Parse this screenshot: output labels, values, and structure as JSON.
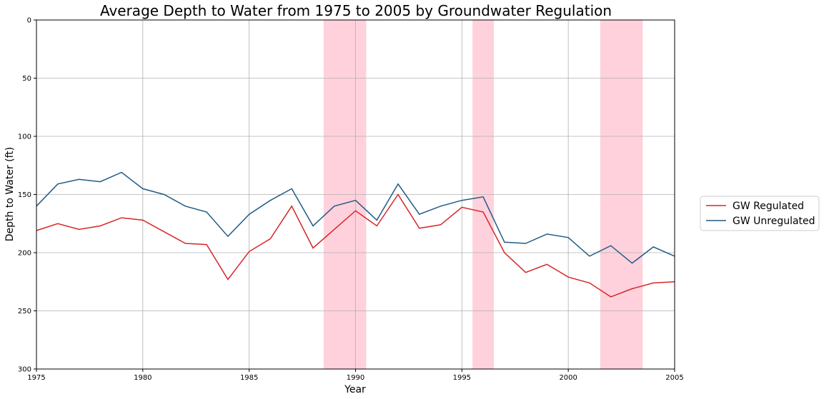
{
  "chart_data": {
    "type": "line",
    "title": "Average Depth to Water from 1975 to 2005 by Groundwater Regulation",
    "xlabel": "Year",
    "ylabel": "Depth to Water (ft)",
    "xlim": [
      1975,
      2005
    ],
    "ylim": [
      0,
      300
    ],
    "y_inverted": true,
    "grid": true,
    "legend_position": "outside-right",
    "x_ticks": [
      1975,
      1980,
      1985,
      1990,
      1995,
      2000,
      2005
    ],
    "y_ticks": [
      0,
      50,
      100,
      150,
      200,
      250,
      300
    ],
    "x": [
      1975,
      1976,
      1977,
      1978,
      1979,
      1980,
      1981,
      1982,
      1983,
      1984,
      1985,
      1986,
      1987,
      1988,
      1989,
      1990,
      1991,
      1992,
      1993,
      1994,
      1995,
      1996,
      1997,
      1998,
      1999,
      2000,
      2001,
      2002,
      2003,
      2004,
      2005
    ],
    "series": [
      {
        "name": "GW Regulated",
        "color": "#d62728",
        "values": [
          181,
          175,
          180,
          177,
          170,
          172,
          182,
          192,
          193,
          223,
          199,
          188,
          160,
          196,
          180,
          164,
          177,
          150,
          179,
          176,
          161,
          165,
          200,
          217,
          210,
          221,
          226,
          238,
          231,
          226,
          225
        ]
      },
      {
        "name": "GW Unregulated",
        "color": "#1f5c86",
        "values": [
          160,
          141,
          137,
          139,
          131,
          145,
          150,
          160,
          165,
          186,
          167,
          155,
          145,
          177,
          160,
          155,
          172,
          141,
          167,
          160,
          155,
          152,
          191,
          192,
          184,
          187,
          203,
          194,
          209,
          195,
          203
        ]
      }
    ],
    "shaded_regions": [
      {
        "x_start": 1988.5,
        "x_end": 1990.5
      },
      {
        "x_start": 1995.5,
        "x_end": 1996.5
      },
      {
        "x_start": 2001.5,
        "x_end": 2003.5
      }
    ],
    "shade_color": "#ffd1dc"
  }
}
